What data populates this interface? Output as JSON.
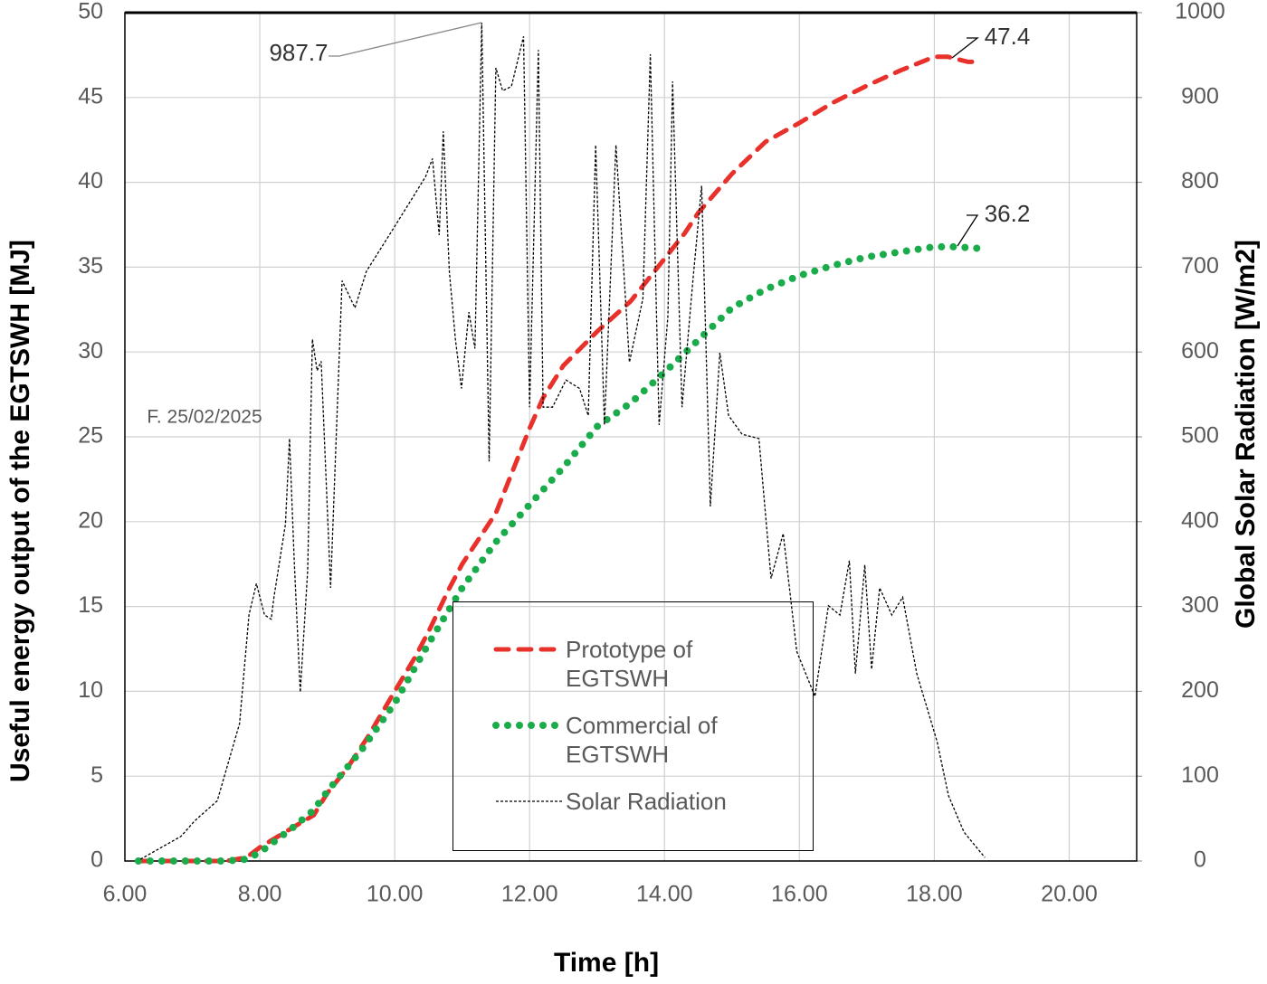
{
  "chart_data": {
    "type": "line",
    "x_label": "Time [h]",
    "y_label": "Useful energy output of the EGTSWH [MJ]",
    "y2_label": "Global Solar Radiation  [W/m2]",
    "annotations": [
      "987.7",
      "47.4",
      "36.2",
      "F. 25/02/2025"
    ],
    "xlim": [
      6,
      21
    ],
    "xticks": [
      {
        "value": 6,
        "label": "6.00"
      },
      {
        "value": 8,
        "label": "8.00"
      },
      {
        "value": 10,
        "label": "10.00"
      },
      {
        "value": 12,
        "label": "12.00"
      },
      {
        "value": 14,
        "label": "14.00"
      },
      {
        "value": 16,
        "label": "16.00"
      },
      {
        "value": 18,
        "label": "18.00"
      },
      {
        "value": 20,
        "label": "20.00"
      }
    ],
    "ylim": [
      0,
      50
    ],
    "yticks": [
      0,
      5,
      10,
      15,
      20,
      25,
      30,
      35,
      40,
      45,
      50
    ],
    "y2lim": [
      0,
      1000
    ],
    "y2ticks": [
      0,
      100,
      200,
      300,
      400,
      500,
      600,
      700,
      800,
      900,
      1000
    ],
    "grid": true,
    "series": [
      {
        "name": "Prototype of EGTSWH",
        "color": "#e8312a",
        "style": "dashed",
        "x": [
          6.2,
          7,
          7.5,
          7.8,
          8,
          8.5,
          8.8,
          9,
          9.3,
          9.6,
          10,
          10.3,
          10.5,
          10.8,
          11,
          11.5,
          12,
          12.2,
          12.5,
          13,
          13.5,
          14,
          14.3,
          14.5,
          15,
          15.5,
          16,
          16.5,
          17,
          17.5,
          18,
          18.2,
          18.5,
          18.7
        ],
        "values": [
          0,
          0,
          0,
          0.2,
          0.8,
          2,
          2.7,
          4,
          5.5,
          7.3,
          10,
          12,
          13.5,
          16,
          17.5,
          20.5,
          25.5,
          27.3,
          29.2,
          31.2,
          33,
          35.5,
          37,
          38.2,
          40.5,
          42.4,
          43.5,
          44.7,
          45.7,
          46.6,
          47.4,
          47.4,
          47.1,
          47.1
        ]
      },
      {
        "name": "Commercial of EGTSWH",
        "color": "#1aab4b",
        "style": "dotted",
        "x": [
          6.2,
          7,
          7.5,
          7.8,
          8,
          8.5,
          8.8,
          9,
          9.5,
          10,
          10.5,
          11,
          11.5,
          12,
          12.5,
          13,
          13.5,
          14,
          14.5,
          15,
          15.5,
          16,
          16.5,
          17,
          17.5,
          18,
          18.3,
          18.7
        ],
        "values": [
          0,
          0,
          0,
          0.1,
          0.5,
          2,
          3,
          4.1,
          6.5,
          9.3,
          12.8,
          16.1,
          18.8,
          21,
          23.2,
          25.6,
          27,
          28.8,
          30.7,
          32.6,
          33.7,
          34.5,
          35.1,
          35.6,
          35.9,
          36.2,
          36.2,
          36.1
        ]
      },
      {
        "name": "Solar Radiation",
        "color": "#000000",
        "style": "fine-dashed",
        "axis": "y2",
        "x": [
          6.23,
          6.83,
          7.03,
          7.37,
          7.7,
          7.84,
          7.95,
          8.07,
          8.17,
          8.21,
          8.38,
          8.44,
          8.51,
          8.6,
          8.71,
          8.78,
          8.85,
          8.91,
          9.05,
          9.14,
          9.22,
          9.41,
          9.58,
          9.92,
          10.25,
          10.46,
          10.56,
          10.66,
          10.72,
          10.81,
          10.9,
          10.99,
          11.1,
          11.19,
          11.29,
          11.4,
          11.5,
          11.6,
          11.73,
          11.91,
          12,
          12.13,
          12.2,
          12.34,
          12.54,
          12.74,
          12.87,
          12.98,
          13.11,
          13.28,
          13.48,
          13.68,
          13.79,
          13.92,
          14.05,
          14.12,
          14.26,
          14.42,
          14.55,
          14.68,
          14.82,
          14.95,
          15.15,
          15.4,
          15.58,
          15.76,
          15.96,
          16.23,
          16.43,
          16.6,
          16.74,
          16.83,
          16.97,
          17.07,
          17.19,
          17.37,
          17.53,
          17.74,
          18.04,
          18.21,
          18.44,
          18.75
        ],
        "values": [
          2,
          29,
          47,
          71,
          162,
          290,
          327,
          290,
          285,
          311,
          397,
          498,
          354,
          199,
          343,
          615,
          578,
          589,
          322,
          514,
          684,
          652,
          695,
          738,
          780,
          807,
          828,
          738,
          860,
          695,
          615,
          557,
          647,
          604,
          988,
          471,
          935,
          908,
          913,
          972,
          535,
          956,
          535,
          535,
          567,
          557,
          525,
          844,
          514,
          844,
          588,
          663,
          951,
          514,
          642,
          919,
          535,
          684,
          796,
          418,
          599,
          525,
          503,
          498,
          333,
          386,
          247,
          194,
          301,
          290,
          354,
          221,
          349,
          226,
          322,
          290,
          311,
          221,
          141,
          77,
          34,
          4
        ]
      }
    ]
  }
}
